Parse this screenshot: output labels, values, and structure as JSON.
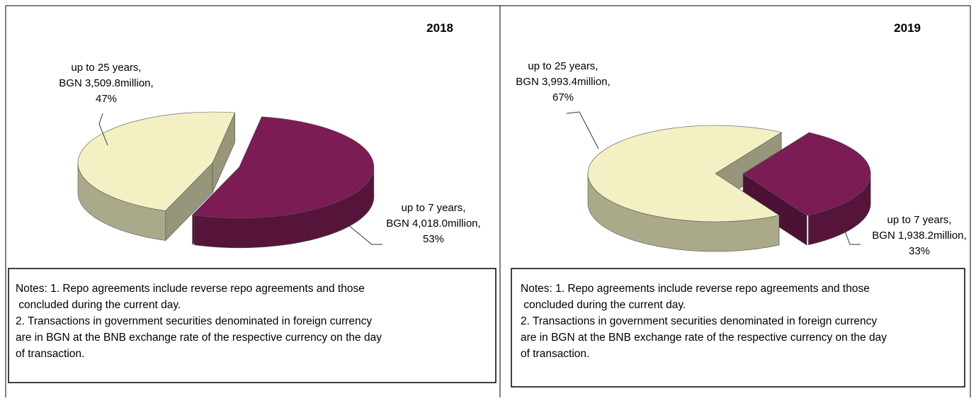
{
  "chart_data": [
    {
      "type": "pie3d",
      "title": "2018",
      "categories": [
        "up to 25 years,",
        "up to 7 years,"
      ],
      "amount_labels": [
        "BGN 3,509.8million,",
        "BGN 4,018.0million,"
      ],
      "values": [
        47,
        53
      ],
      "value_labels": [
        "47%",
        "53%"
      ],
      "colors": [
        "#f3f1c4",
        "#7b1c55"
      ],
      "notes": [
        "Notes: 1. Repo agreements include reverse repo agreements and those",
        " concluded during the current day.",
        "2. Transactions in government securities denominated in foreign currency",
        "are in BGN at the BNB exchange rate of the respective currency on the day",
        "of transaction."
      ]
    },
    {
      "type": "pie3d",
      "title": "2019",
      "categories": [
        "up to 25 years,",
        "up to 7 years,"
      ],
      "amount_labels": [
        "BGN 3,993.4million,",
        "BGN 1,938.2million,"
      ],
      "values": [
        67,
        33
      ],
      "value_labels": [
        "67%",
        "33%"
      ],
      "colors": [
        "#f3f1c4",
        "#7b1c55"
      ],
      "notes": [
        "Notes: 1. Repo agreements include reverse repo agreements and those",
        " concluded during the current day.",
        "2. Transactions in government securities denominated in foreign currency",
        "are in BGN at the BNB exchange rate of the respective currency on the day",
        "of transaction."
      ]
    }
  ]
}
